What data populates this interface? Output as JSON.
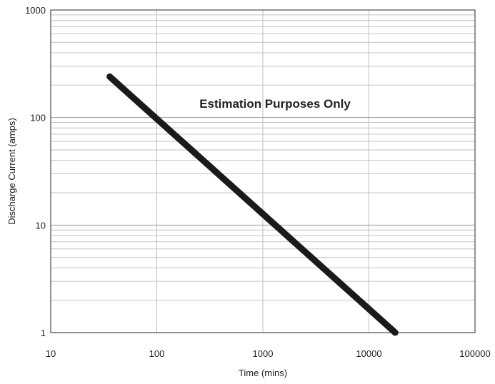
{
  "chart_data": {
    "type": "line",
    "xlabel": "Time (mins)",
    "ylabel": "Discharge Current (amps)",
    "xscale": "log",
    "yscale": "log",
    "xlim": [
      10,
      100000
    ],
    "ylim": [
      1,
      1000
    ],
    "x_ticks": [
      "10",
      "100",
      "1000",
      "10000",
      "100000"
    ],
    "y_ticks": [
      "1",
      "10",
      "100",
      "1000"
    ],
    "grid": true,
    "annotation": "Estimation Purposes Only",
    "series": [
      {
        "x": [
          36,
          17700
        ],
        "y": [
          240,
          1
        ],
        "color": "#1a1a1a"
      }
    ]
  }
}
